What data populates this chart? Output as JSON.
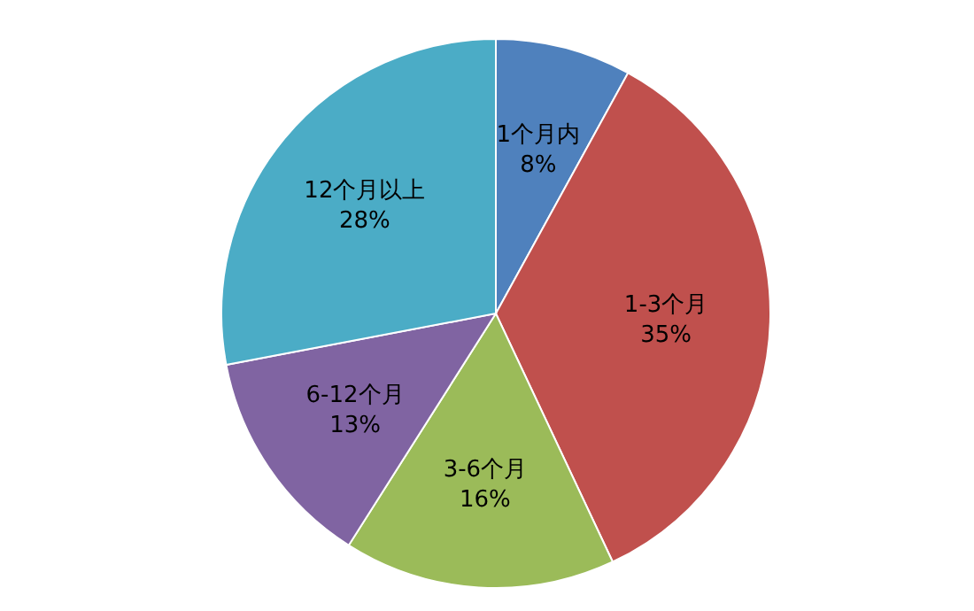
{
  "chart_data": {
    "type": "pie",
    "categories": [
      "1个月内",
      "1-3个月",
      "3-6个月",
      "6-12个月",
      "12个月以上"
    ],
    "values": [
      8,
      35,
      16,
      13,
      28
    ],
    "value_labels": [
      "8%",
      "35%",
      "16%",
      "13%",
      "28%"
    ],
    "colors": [
      "#4f81bd",
      "#c0504d",
      "#9bbb59",
      "#8064a2",
      "#4bacc6"
    ],
    "legend": false
  }
}
